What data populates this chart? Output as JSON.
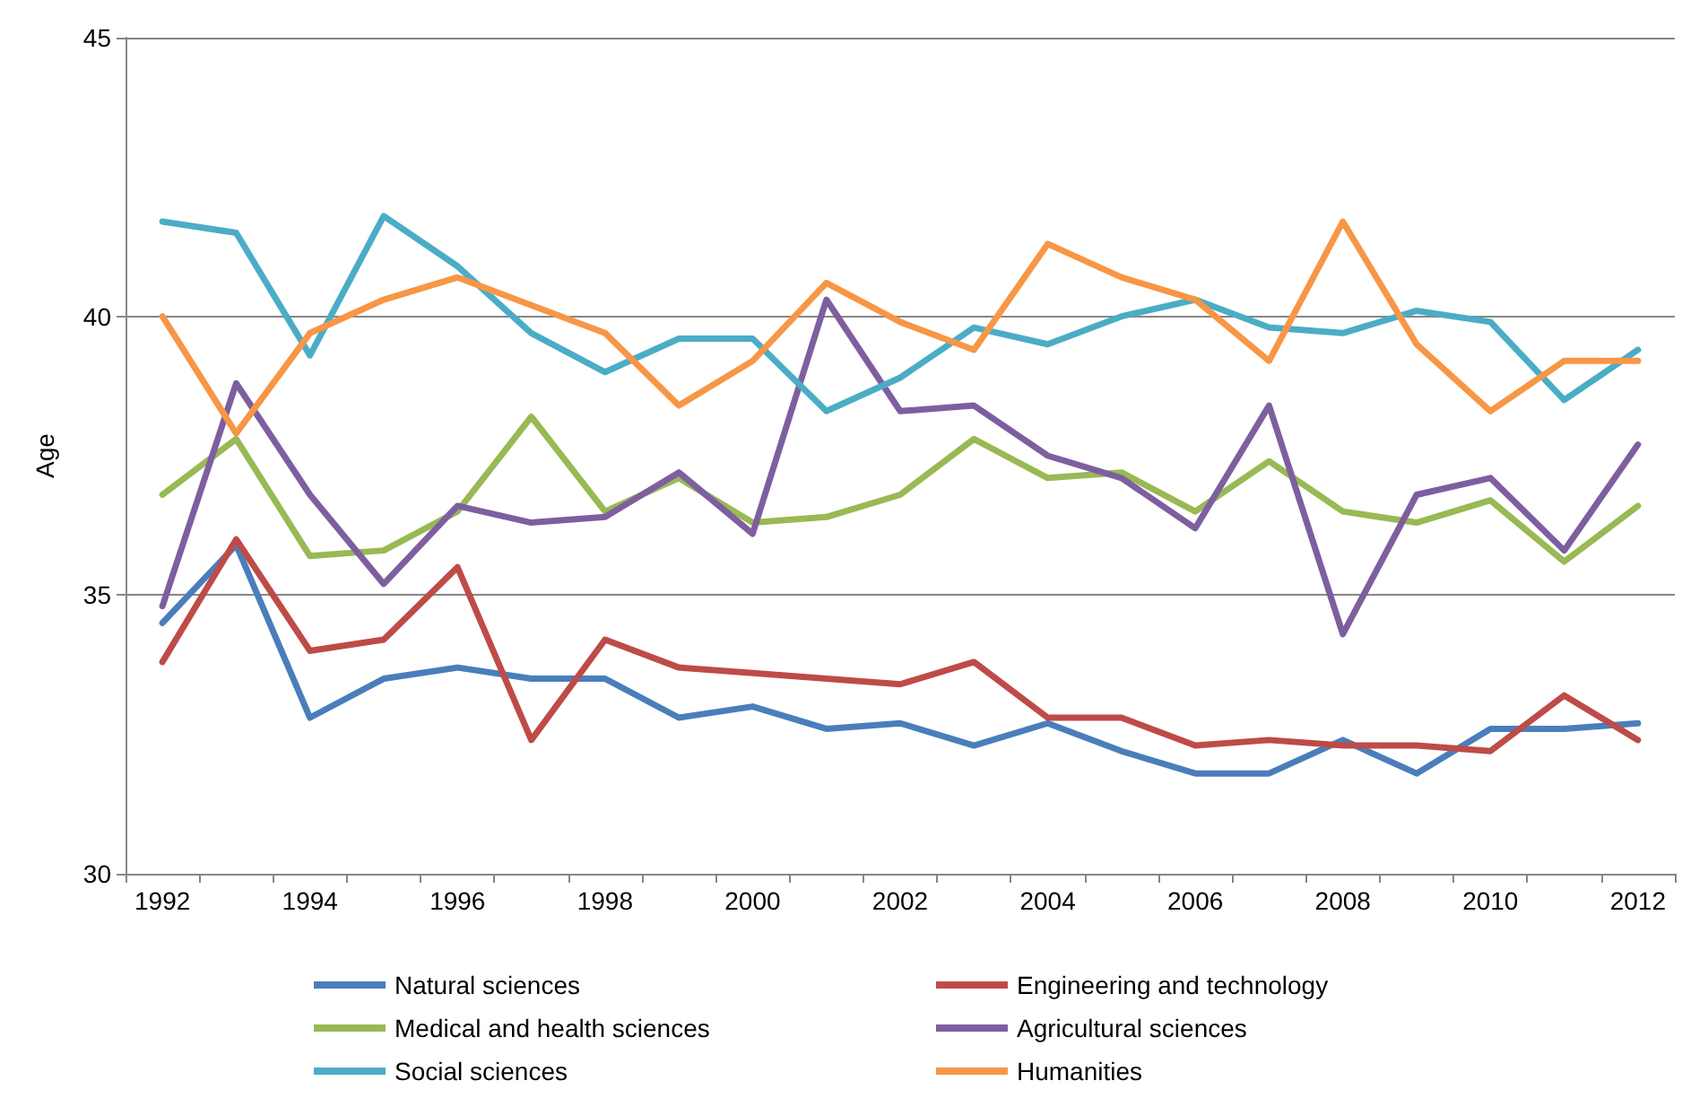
{
  "chart_data": {
    "type": "line",
    "ylabel": "Age",
    "categories": [
      "1992",
      null,
      "1994",
      null,
      "1996",
      null,
      "1998",
      null,
      "2000",
      null,
      "2002",
      null,
      "2004",
      null,
      "2006",
      null,
      "2008",
      null,
      "2010",
      null,
      "2012"
    ],
    "series": [
      {
        "name": "Natural sciences",
        "color": "#4a7ebb",
        "values": [
          34.5,
          35.9,
          32.8,
          33.5,
          33.7,
          33.5,
          33.5,
          32.8,
          33.0,
          32.6,
          32.7,
          32.3,
          32.7,
          32.2,
          31.8,
          31.8,
          32.4,
          31.8,
          32.6,
          32.6,
          32.7
        ]
      },
      {
        "name": "Engineering and technology",
        "color": "#be4b48",
        "values": [
          33.8,
          36.0,
          34.0,
          34.2,
          35.5,
          32.4,
          34.2,
          33.7,
          33.6,
          33.5,
          33.4,
          33.8,
          32.8,
          32.8,
          32.3,
          32.4,
          32.3,
          32.3,
          32.2,
          33.2,
          32.4
        ]
      },
      {
        "name": "Medical and health sciences",
        "color": "#98b954",
        "values": [
          36.8,
          37.8,
          35.7,
          35.8,
          36.5,
          38.2,
          36.5,
          37.1,
          36.3,
          36.4,
          36.8,
          37.8,
          37.1,
          37.2,
          36.5,
          37.4,
          36.5,
          36.3,
          36.7,
          35.6,
          36.6
        ]
      },
      {
        "name": "Agricultural sciences",
        "color": "#7d5fa0",
        "values": [
          34.8,
          38.8,
          36.8,
          35.2,
          36.6,
          36.3,
          36.4,
          37.2,
          36.1,
          40.3,
          38.3,
          38.4,
          37.5,
          37.1,
          36.2,
          38.4,
          34.3,
          36.8,
          37.1,
          35.8,
          37.7
        ]
      },
      {
        "name": "Social sciences",
        "color": "#4bacc6",
        "values": [
          41.7,
          41.5,
          39.3,
          41.8,
          40.9,
          39.7,
          39.0,
          39.6,
          39.6,
          38.3,
          38.9,
          39.8,
          39.5,
          40.0,
          40.3,
          39.8,
          39.7,
          40.1,
          39.9,
          38.5,
          39.4
        ]
      },
      {
        "name": "Humanities",
        "color": "#f79646",
        "values": [
          40.0,
          37.9,
          39.7,
          40.3,
          40.7,
          40.2,
          39.7,
          38.4,
          39.2,
          40.6,
          39.9,
          39.4,
          41.3,
          40.7,
          40.3,
          39.2,
          41.7,
          39.5,
          38.3,
          39.2,
          39.2
        ]
      }
    ],
    "ylim": [
      30,
      45
    ],
    "yticks": [
      30,
      35,
      40,
      45
    ],
    "grid": "y",
    "legend": "bottom",
    "marker": "none",
    "line_style": "solid"
  }
}
